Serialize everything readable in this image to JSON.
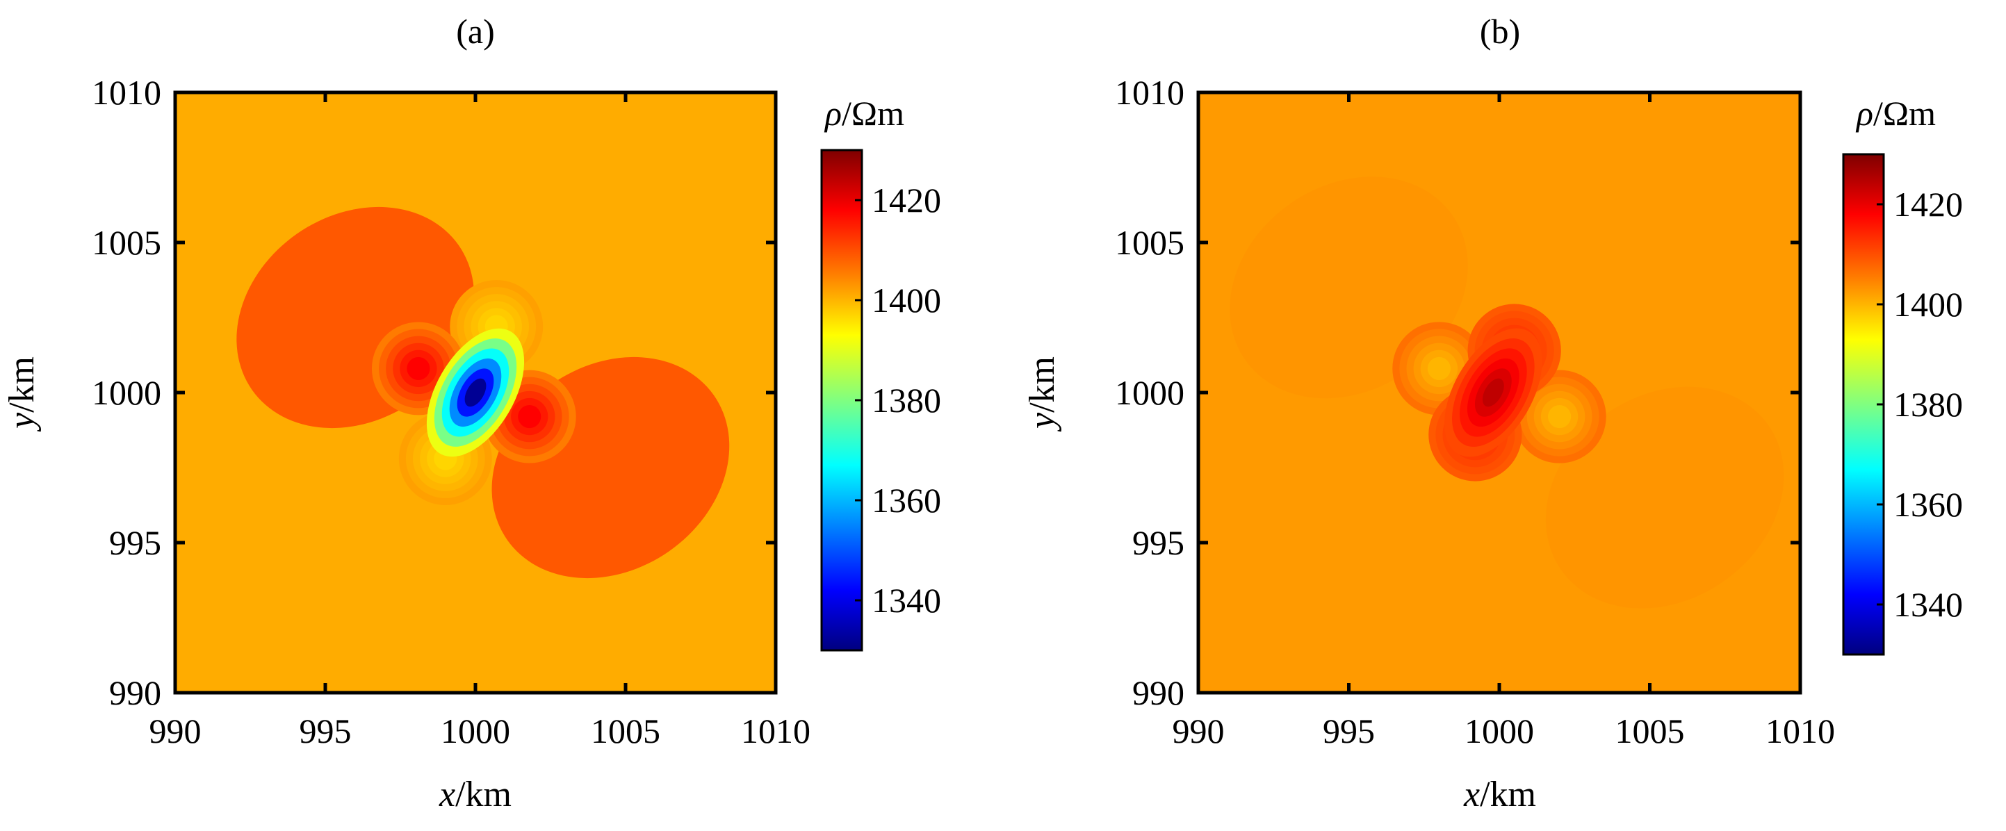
{
  "colors": {
    "background": "#FFAC00",
    "low_lobe": "#FF9A00",
    "high_lobe": "#FFB700",
    "axis": "#000000",
    "colormap": [
      "#00007F",
      "#0000FF",
      "#0080FF",
      "#00FFFF",
      "#80FF80",
      "#FFFF00",
      "#FF8000",
      "#FF0000",
      "#7F0000"
    ]
  },
  "chart_data": [
    {
      "type": "heatmap",
      "title": "(a)",
      "xlabel": {
        "var": "x",
        "unit": "/km"
      },
      "ylabel": {
        "var": "y",
        "unit": "/km"
      },
      "xlim": [
        990,
        1010
      ],
      "ylim": [
        990,
        1010
      ],
      "xticks": [
        "990",
        "995",
        "1000",
        "1005",
        "1010"
      ],
      "yticks": [
        "990",
        "995",
        "1000",
        "1005",
        "1010"
      ],
      "colorbar": {
        "label": {
          "var": "ρ",
          "unit": "/Ωm"
        },
        "range": [
          1330,
          1430
        ],
        "ticks": [
          "1340",
          "1360",
          "1380",
          "1400",
          "1420"
        ]
      },
      "background_value": 1403,
      "anomalies": [
        {
          "x": 1000.0,
          "y": 1000.0,
          "value": 1332
        },
        {
          "x": 998.1,
          "y": 1000.8,
          "value": 1418
        },
        {
          "x": 1001.8,
          "y": 999.2,
          "value": 1418
        },
        {
          "x": 1000.7,
          "y": 1002.2,
          "value": 1397
        },
        {
          "x": 999.0,
          "y": 997.8,
          "value": 1397
        }
      ],
      "lobes": [
        {
          "x": 996.0,
          "y": 1002.5,
          "value": 1410
        },
        {
          "x": 1004.5,
          "y": 997.5,
          "value": 1410
        }
      ]
    },
    {
      "type": "heatmap",
      "title": "(b)",
      "xlabel": {
        "var": "x",
        "unit": "/km"
      },
      "ylabel": {
        "var": "y",
        "unit": "/km"
      },
      "xlim": [
        990,
        1010
      ],
      "ylim": [
        990,
        1010
      ],
      "xticks": [
        "990",
        "995",
        "1000",
        "1005",
        "1010"
      ],
      "yticks": [
        "990",
        "995",
        "1000",
        "1005",
        "1010"
      ],
      "colorbar": {
        "label": {
          "var": "ρ",
          "unit": "/Ωm"
        },
        "range": [
          1330,
          1430
        ],
        "ticks": [
          "1340",
          "1360",
          "1380",
          "1400",
          "1420"
        ]
      },
      "background_value": 1408,
      "anomalies": [
        {
          "x": 999.8,
          "y": 1000.0,
          "value": 1424
        },
        {
          "x": 1000.5,
          "y": 1001.4,
          "value": 1414
        },
        {
          "x": 999.2,
          "y": 998.6,
          "value": 1414
        },
        {
          "x": 998.0,
          "y": 1000.8,
          "value": 1400
        },
        {
          "x": 1002.0,
          "y": 999.2,
          "value": 1400
        }
      ],
      "lobes": [
        {
          "x": 995.0,
          "y": 1003.5,
          "value": 1403
        },
        {
          "x": 1005.5,
          "y": 996.5,
          "value": 1403
        }
      ]
    }
  ]
}
